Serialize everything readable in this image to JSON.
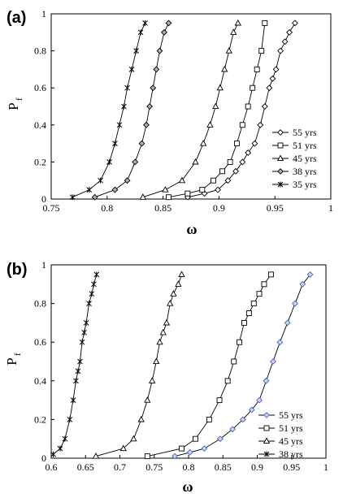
{
  "chart_data": [
    {
      "type": "line",
      "panel_label": "(a)",
      "xlabel": "ω",
      "ylabel": "P",
      "ylabel_sub": "f",
      "xlim": [
        0.75,
        1
      ],
      "ylim": [
        0,
        1
      ],
      "xticks": [
        0.75,
        0.8,
        0.85,
        0.9,
        0.95,
        1
      ],
      "xtick_labels": [
        "0.75",
        "0.8",
        "0.85",
        "0.9",
        "0.95",
        "1"
      ],
      "yticks": [
        0,
        0.2,
        0.4,
        0.6,
        0.8,
        1
      ],
      "ytick_labels": [
        "0",
        "0.2",
        "0.4",
        "0.6",
        "0.8",
        "1"
      ],
      "legend_position": "bottom-right",
      "series": [
        {
          "name": "55 yrs",
          "marker": "diamond-open",
          "x": [
            0.872,
            0.887,
            0.899,
            0.908,
            0.915,
            0.921,
            0.926,
            0.932,
            0.937,
            0.941,
            0.945,
            0.948,
            0.951,
            0.955,
            0.959,
            0.963,
            0.968
          ],
          "y": [
            0.01,
            0.03,
            0.05,
            0.1,
            0.15,
            0.2,
            0.25,
            0.3,
            0.4,
            0.5,
            0.6,
            0.65,
            0.7,
            0.8,
            0.85,
            0.9,
            0.95
          ]
        },
        {
          "name": "51 yrs",
          "marker": "square-open",
          "x": [
            0.855,
            0.872,
            0.885,
            0.895,
            0.903,
            0.91,
            0.916,
            0.921,
            0.926,
            0.93,
            0.934,
            0.938,
            0.941
          ],
          "y": [
            0.01,
            0.03,
            0.05,
            0.1,
            0.15,
            0.2,
            0.3,
            0.4,
            0.5,
            0.6,
            0.7,
            0.8,
            0.95
          ]
        },
        {
          "name": "45 yrs",
          "marker": "triangle-open",
          "x": [
            0.832,
            0.852,
            0.867,
            0.879,
            0.886,
            0.892,
            0.897,
            0.901,
            0.905,
            0.909,
            0.913,
            0.917
          ],
          "y": [
            0.01,
            0.05,
            0.1,
            0.2,
            0.3,
            0.4,
            0.5,
            0.6,
            0.7,
            0.8,
            0.9,
            0.95
          ]
        },
        {
          "name": "38 yrs",
          "marker": "diamond-gray",
          "x": [
            0.789,
            0.807,
            0.818,
            0.825,
            0.831,
            0.835,
            0.838,
            0.841,
            0.844,
            0.847,
            0.851,
            0.855
          ],
          "y": [
            0.01,
            0.05,
            0.1,
            0.2,
            0.3,
            0.4,
            0.5,
            0.6,
            0.7,
            0.8,
            0.9,
            0.95
          ]
        },
        {
          "name": "35 yrs",
          "marker": "star",
          "x": [
            0.769,
            0.784,
            0.794,
            0.802,
            0.807,
            0.811,
            0.815,
            0.818,
            0.822,
            0.826,
            0.83,
            0.834
          ],
          "y": [
            0.01,
            0.05,
            0.1,
            0.2,
            0.3,
            0.4,
            0.5,
            0.6,
            0.7,
            0.8,
            0.9,
            0.95
          ]
        }
      ]
    },
    {
      "type": "line",
      "panel_label": "(b)",
      "xlabel": "ω",
      "ylabel": "P",
      "ylabel_sub": "f",
      "xlim": [
        0.6,
        1
      ],
      "ylim": [
        0,
        1
      ],
      "xticks": [
        0.6,
        0.65,
        0.7,
        0.75,
        0.8,
        0.85,
        0.9,
        0.95,
        1
      ],
      "xtick_labels": [
        "0.6",
        "0.65",
        "0.7",
        "0.75",
        "0.8",
        "0.85",
        "0.9",
        "0.95",
        "1"
      ],
      "yticks": [
        0,
        0.2,
        0.4,
        0.6,
        0.8,
        1
      ],
      "ytick_labels": [
        "0",
        "0.2",
        "0.4",
        "0.6",
        "0.8",
        "1"
      ],
      "legend_position": "bottom-right",
      "series": [
        {
          "name": "55 yrs",
          "marker": "diamond-blue",
          "x": [
            0.78,
            0.802,
            0.823,
            0.846,
            0.864,
            0.879,
            0.892,
            0.903,
            0.913,
            0.923,
            0.933,
            0.944,
            0.955,
            0.966,
            0.977
          ],
          "y": [
            0.01,
            0.03,
            0.05,
            0.1,
            0.15,
            0.2,
            0.25,
            0.3,
            0.4,
            0.5,
            0.6,
            0.7,
            0.8,
            0.9,
            0.95
          ]
        },
        {
          "name": "51 yrs",
          "marker": "square-open",
          "x": [
            0.74,
            0.79,
            0.81,
            0.83,
            0.845,
            0.857,
            0.866,
            0.874,
            0.881,
            0.888,
            0.895,
            0.903,
            0.91,
            0.92
          ],
          "y": [
            0.01,
            0.05,
            0.1,
            0.2,
            0.3,
            0.4,
            0.5,
            0.6,
            0.7,
            0.75,
            0.8,
            0.85,
            0.9,
            0.95
          ]
        },
        {
          "name": "45 yrs",
          "marker": "triangle-open",
          "x": [
            0.665,
            0.705,
            0.72,
            0.731,
            0.74,
            0.747,
            0.753,
            0.758,
            0.763,
            0.768,
            0.773,
            0.778,
            0.785,
            0.79
          ],
          "y": [
            0.01,
            0.05,
            0.1,
            0.2,
            0.3,
            0.4,
            0.5,
            0.6,
            0.65,
            0.7,
            0.8,
            0.85,
            0.9,
            0.95
          ]
        },
        {
          "name": "38 yrs",
          "marker": "star",
          "x": [
            0.603,
            0.613,
            0.62,
            0.627,
            0.632,
            0.636,
            0.639,
            0.642,
            0.645,
            0.648,
            0.651,
            0.655,
            0.659,
            0.662,
            0.666
          ],
          "y": [
            0.02,
            0.05,
            0.1,
            0.2,
            0.3,
            0.4,
            0.45,
            0.5,
            0.6,
            0.65,
            0.7,
            0.8,
            0.85,
            0.9,
            0.95
          ]
        }
      ]
    }
  ]
}
